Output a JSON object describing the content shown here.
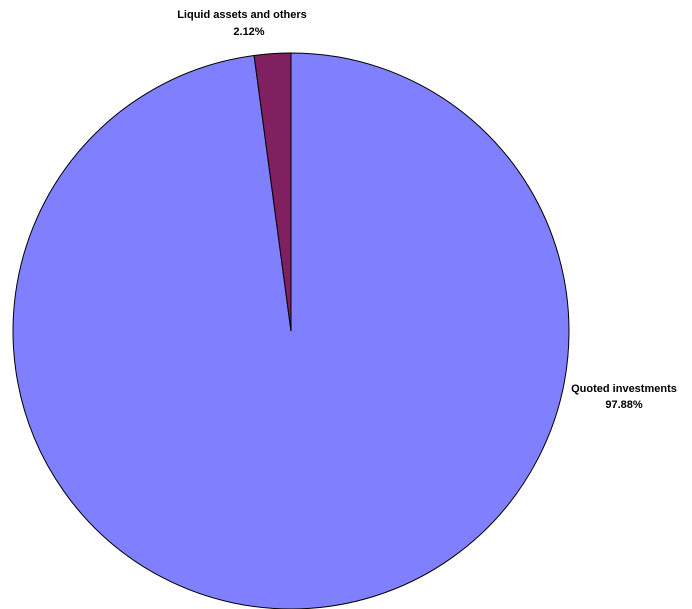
{
  "chart_data": {
    "type": "pie",
    "title": "",
    "start_angle_deg": 0,
    "direction": "clockwise",
    "slices": [
      {
        "name": "Quoted investments",
        "value": 97.88,
        "value_label": "97.88%",
        "color": "#8080ff"
      },
      {
        "name": "Liquid assets and others",
        "value": 2.12,
        "value_label": "2.12%",
        "color": "#802060"
      }
    ]
  }
}
